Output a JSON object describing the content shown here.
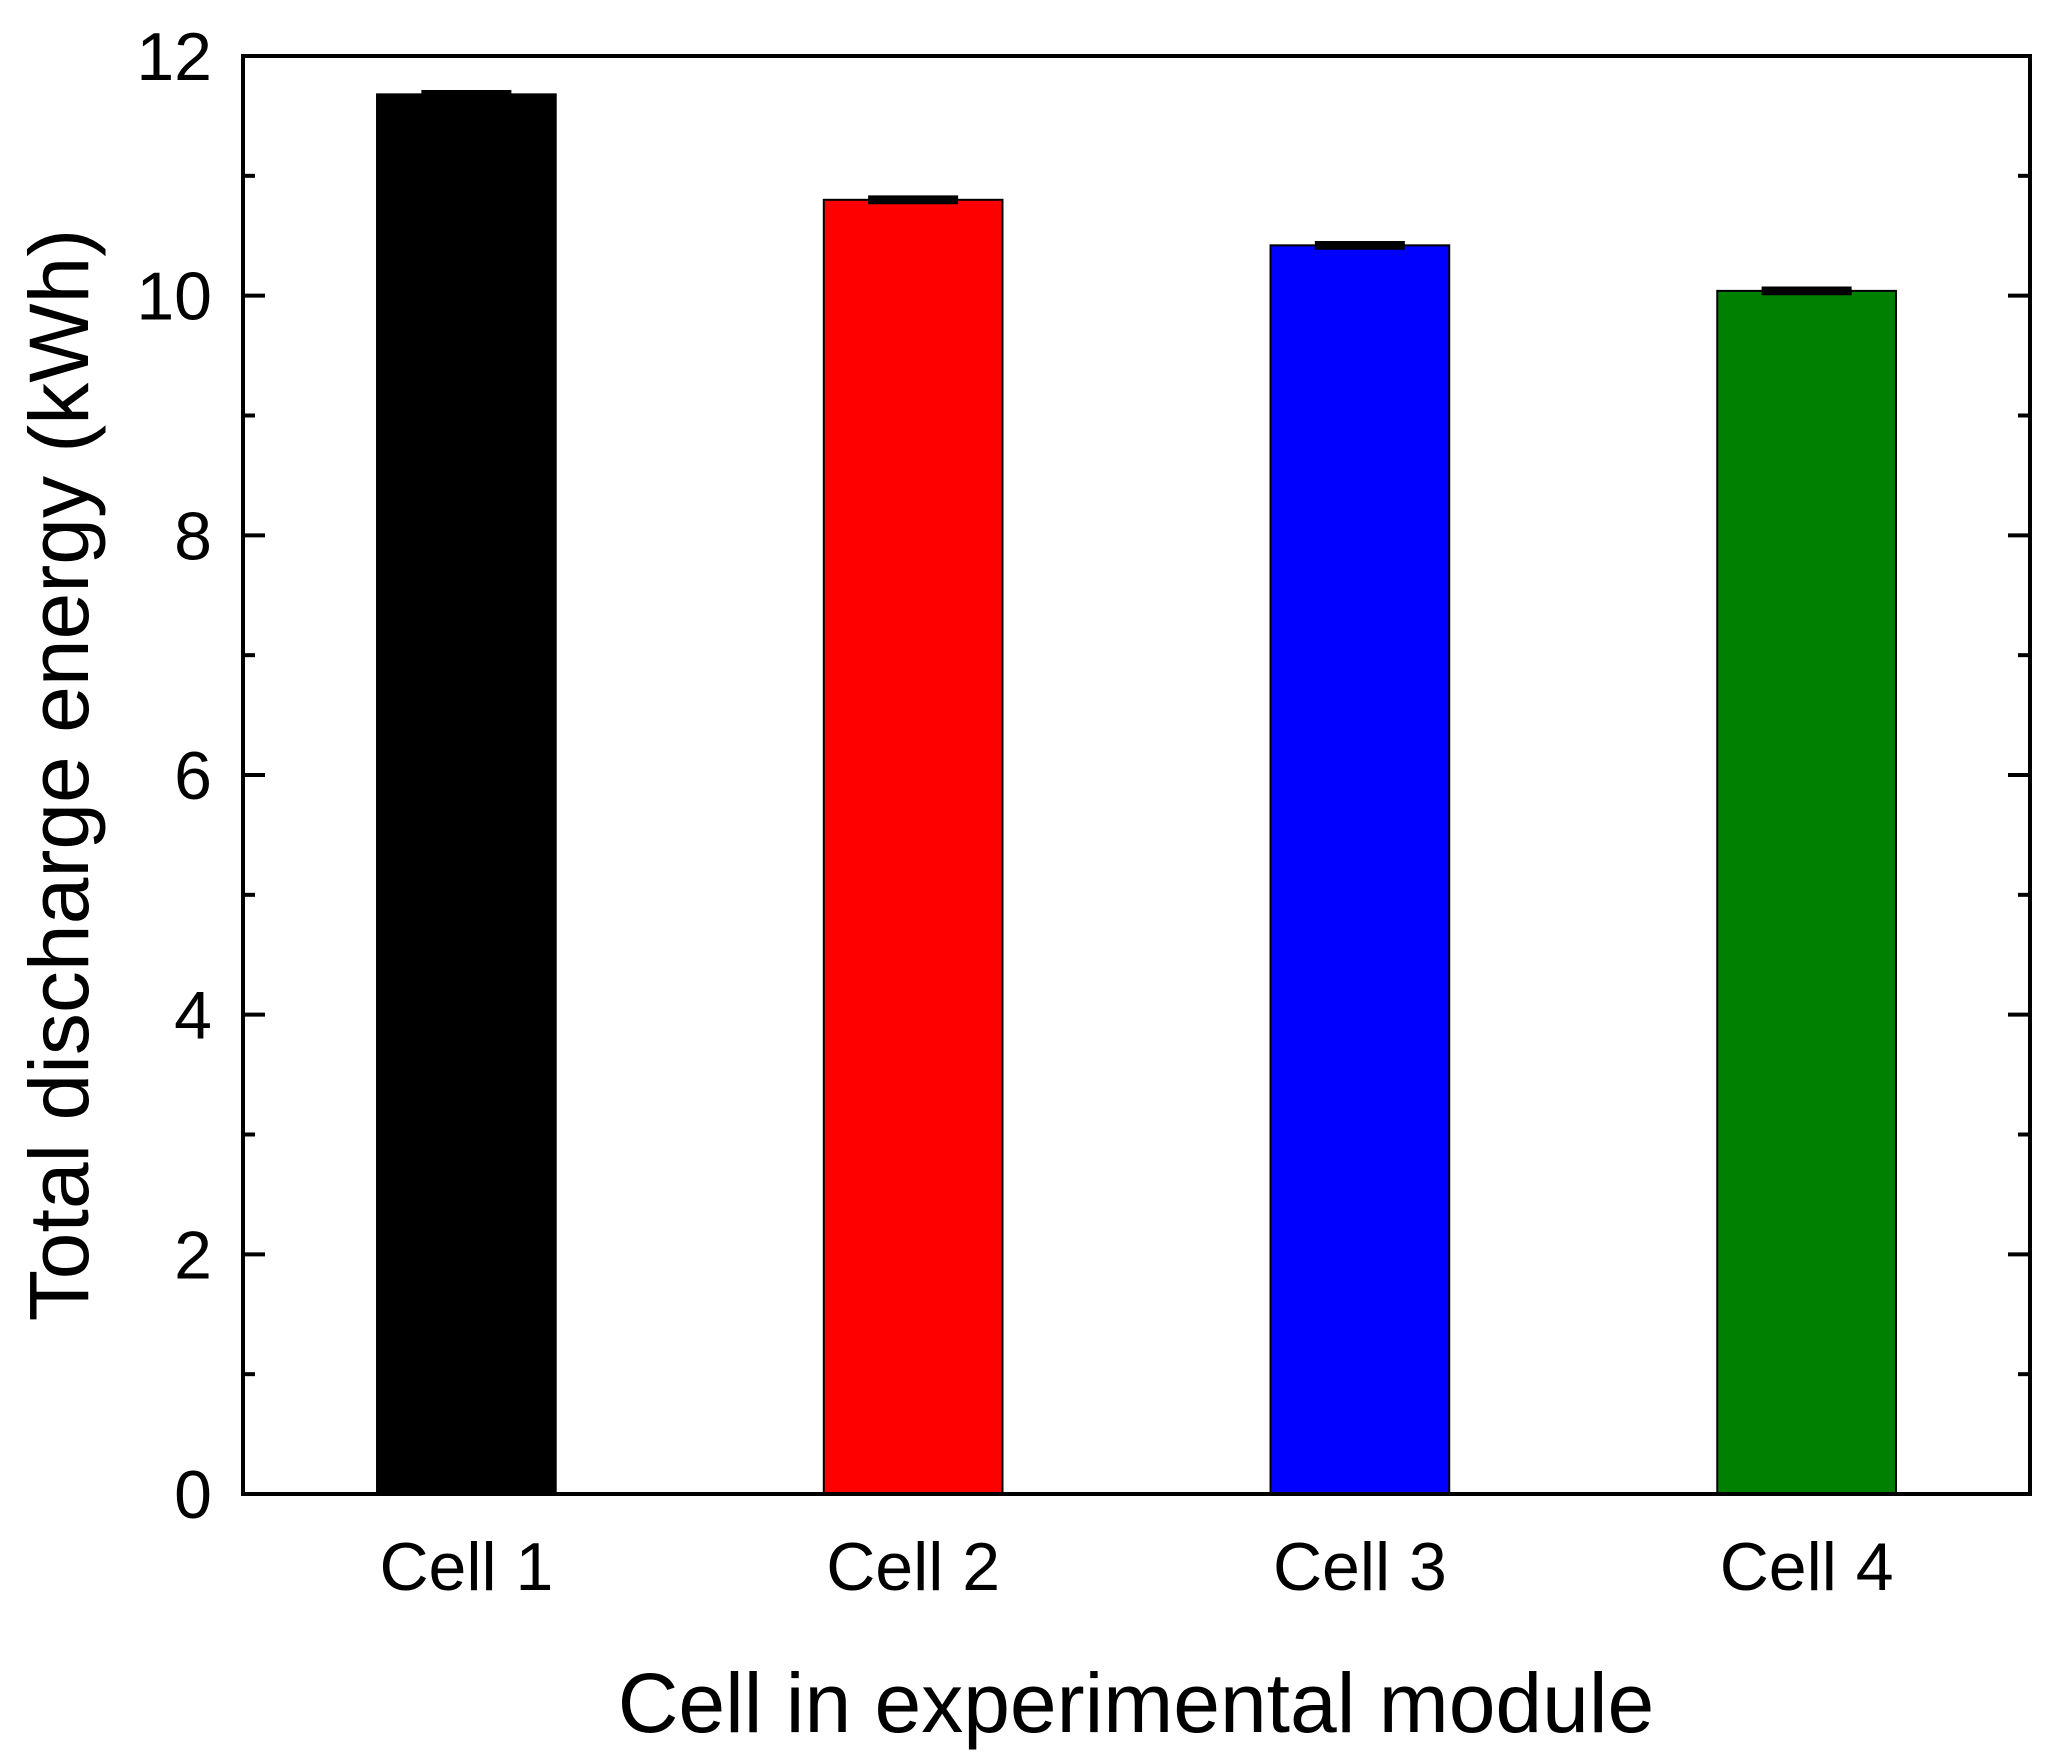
{
  "chart_data": {
    "type": "bar",
    "title": "",
    "xlabel": "Cell in experimental module",
    "ylabel": "Total discharge energy (kWh)",
    "categories": [
      "Cell 1",
      "Cell 2",
      "Cell 3",
      "Cell 4"
    ],
    "values": [
      11.68,
      10.8,
      10.42,
      10.04
    ],
    "errors": [
      0.02,
      0.02,
      0.02,
      0.02
    ],
    "bar_colors": [
      "#000000",
      "#ff0000",
      "#0000ff",
      "#008000"
    ],
    "ylim": [
      0,
      12
    ],
    "yticks": [
      0,
      2,
      4,
      6,
      8,
      10,
      12
    ],
    "yticks_minor": [
      1,
      3,
      5,
      7,
      9,
      11
    ],
    "grid": false,
    "legend": "none"
  }
}
